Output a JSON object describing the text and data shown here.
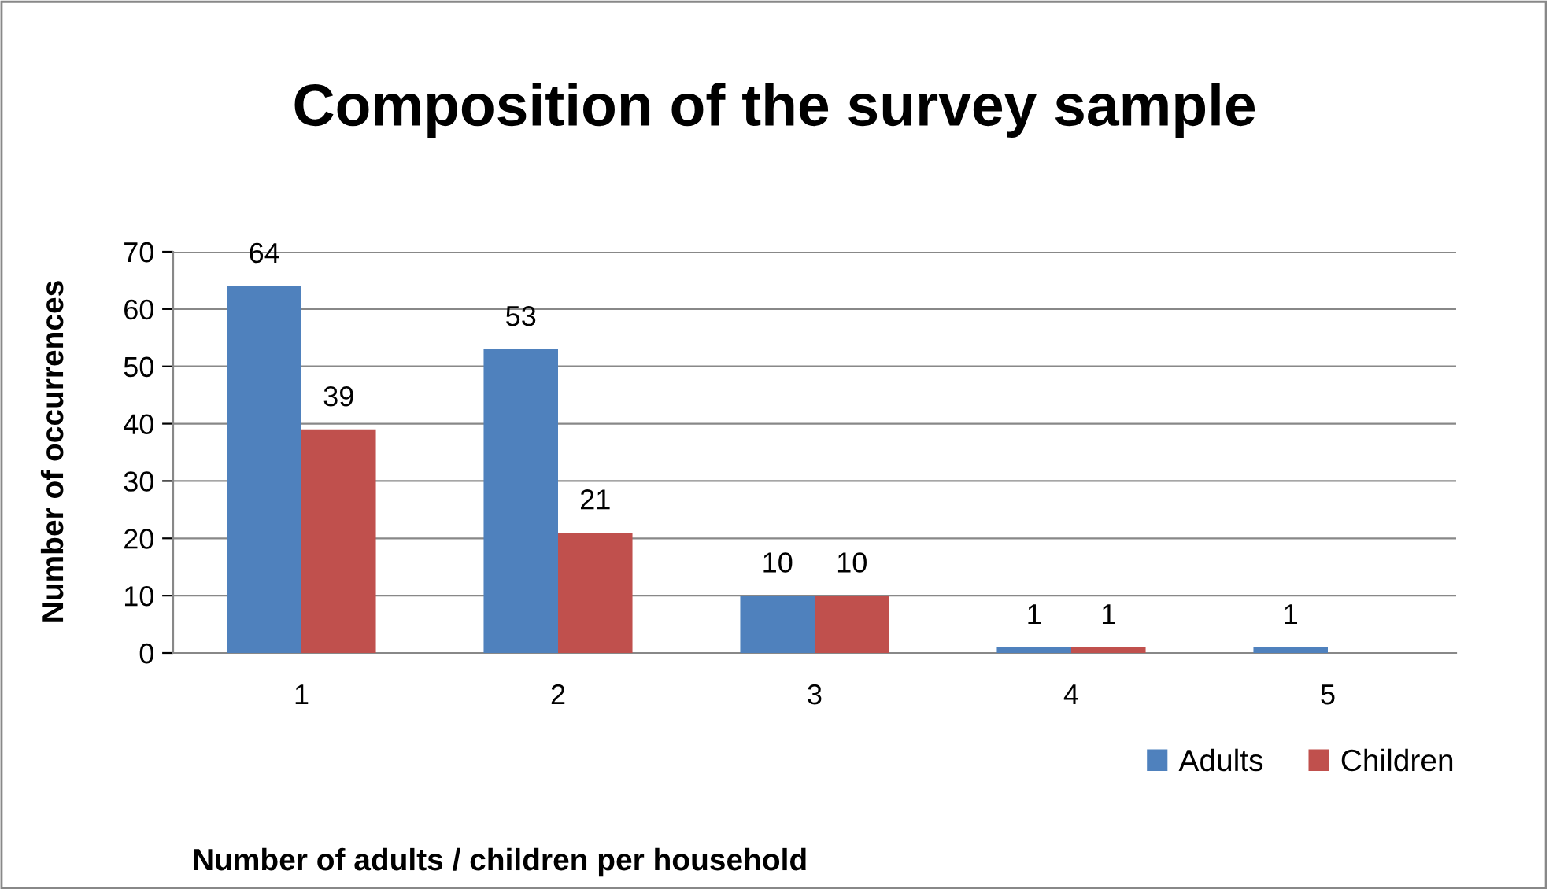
{
  "chart_data": {
    "type": "bar",
    "title": "Composition of the survey sample",
    "xlabel": "Number of adults / children per household",
    "ylabel": "Number of occurrences",
    "categories": [
      "1",
      "2",
      "3",
      "4",
      "5"
    ],
    "series": [
      {
        "name": "Adults",
        "color": "#4f81bd",
        "values": [
          64,
          53,
          10,
          1,
          1
        ]
      },
      {
        "name": "Children",
        "color": "#c0504d",
        "values": [
          39,
          21,
          10,
          1,
          null
        ]
      }
    ],
    "ylim": [
      0,
      70
    ],
    "yticks": [
      0,
      10,
      20,
      30,
      40,
      50,
      60,
      70
    ],
    "grid": "y",
    "legend": "bottom right",
    "data_labels": true
  }
}
